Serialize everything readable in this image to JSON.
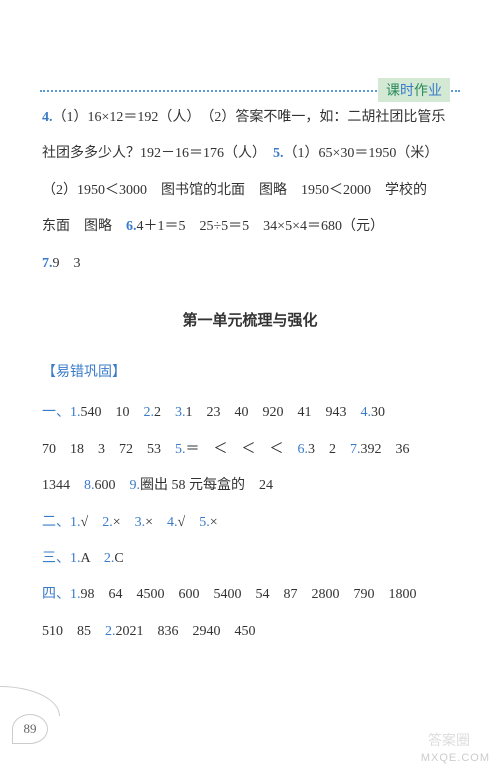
{
  "header": {
    "badge_part1": "课",
    "badge_part2": "时",
    "badge_part3": "作",
    "badge_part4": "业"
  },
  "top_block": {
    "q4_num": "4.",
    "q4_text1": "（1）16×12＝192（人）　（2）答案不唯一，如：二胡社团比管乐",
    "q4_text2": "社团多多少人？192－16＝176（人）　",
    "q5_num": "5.",
    "q5_text1": "（1）65×30＝1950（米）",
    "q5_text2": "（2）1950＜3000　图书馆的北面　图略　1950＜2000　学校的",
    "q5_text3": "东面　图略　",
    "q6_num": "6.",
    "q6_text": "4＋1＝5　25÷5＝5　34×5×4＝680（元）",
    "q7_num": "7.",
    "q7_text": "9　3"
  },
  "section": {
    "title": "第一单元梳理与强化",
    "label": "【易错巩固】"
  },
  "group1": {
    "hdr": "一、",
    "l1": "540　10　",
    "n2": "2.",
    "l2": "2　",
    "n3": "3.",
    "l3": "1　23　40　920　41　943　",
    "n4": "4.",
    "l4": "30",
    "line2": "70　18　3　72　53　",
    "n5": "5.",
    "l5": "＝　＜　＜　＜　",
    "n6": "6.",
    "l6": "3　2　",
    "n7": "7.",
    "l7": "392　36",
    "line3": "1344　",
    "n8": "8.",
    "l8": "600　",
    "n9": "9.",
    "l9": "圈出 58 元每盒的　24",
    "n1": "1."
  },
  "group2": {
    "hdr": "二、",
    "n1": "1.",
    "v1": "√　",
    "n2": "2.",
    "v2": "×　",
    "n3": "3.",
    "v3": "×　",
    "n4": "4.",
    "v4": "√　",
    "n5": "5.",
    "v5": "×"
  },
  "group3": {
    "hdr": "三、",
    "n1": "1.",
    "v1": "A　",
    "n2": "2.",
    "v2": "C"
  },
  "group4": {
    "hdr": "四、",
    "n1": "1.",
    "l1": "98　64　4500　600　5400　54　87　2800　790　1800",
    "line2": "510　85　",
    "n2": "2.",
    "l2": "2021　836　2940　450"
  },
  "page_number": "89",
  "watermark1": "MXQE.COM",
  "watermark2": "答案圈"
}
